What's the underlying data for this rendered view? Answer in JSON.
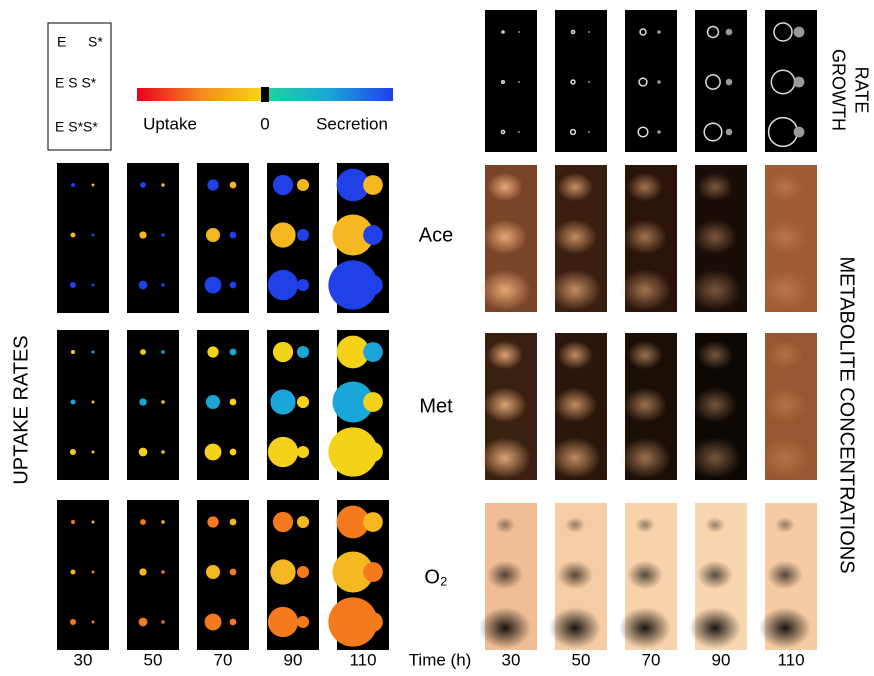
{
  "legend": {
    "rows": [
      [
        "E",
        "S*"
      ],
      [
        "E S S*"
      ],
      [
        "E S*S*"
      ]
    ]
  },
  "colorbar": {
    "left": "Uptake",
    "center": "0",
    "right": "Secretion"
  },
  "row_labels": [
    "Ace",
    "Met",
    "O₂"
  ],
  "left_title": "UPTAKE RATES",
  "growth_title": [
    "GROWTH",
    "RATE"
  ],
  "right_title": "METABOLITE CONCENTRATIONS",
  "times_left": [
    "30",
    "50",
    "70",
    "90",
    "110"
  ],
  "time_axis": "Time (h)",
  "times_right": [
    "30",
    "50",
    "70",
    "90",
    "110"
  ]
}
